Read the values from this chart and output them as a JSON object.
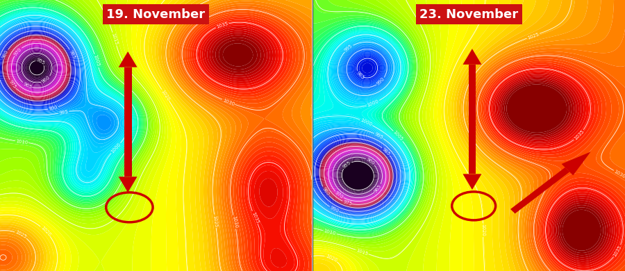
{
  "panel1_title": "19. November",
  "panel2_title": "23. November",
  "title_bg_color": "#cc1111",
  "title_text_color": "#ffffff",
  "title_fontsize": 13,
  "arrow_color": "#cc0000",
  "circle_color": "#cc0000",
  "circle_linewidth": 2.5,
  "divider_color": "#555555",
  "cmap_colors": [
    "#1a0020",
    "#3d0050",
    "#6a0080",
    "#9900aa",
    "#cc00cc",
    "#dd00aa",
    "#cc0055",
    "#aa0022",
    "#0000cc",
    "#0022ee",
    "#0055ff",
    "#0088ff",
    "#00bbff",
    "#00ddff",
    "#00ffee",
    "#00ff99",
    "#44ff44",
    "#99ff00",
    "#ccff00",
    "#ffff00",
    "#ffdd00",
    "#ffaa00",
    "#ff7700",
    "#ff4400",
    "#ff1100",
    "#cc0000",
    "#880000"
  ],
  "vmin": 955,
  "vmax": 1042,
  "contour_levels_step": 5,
  "contour_lw": 0.65,
  "label_fontsize": 5
}
